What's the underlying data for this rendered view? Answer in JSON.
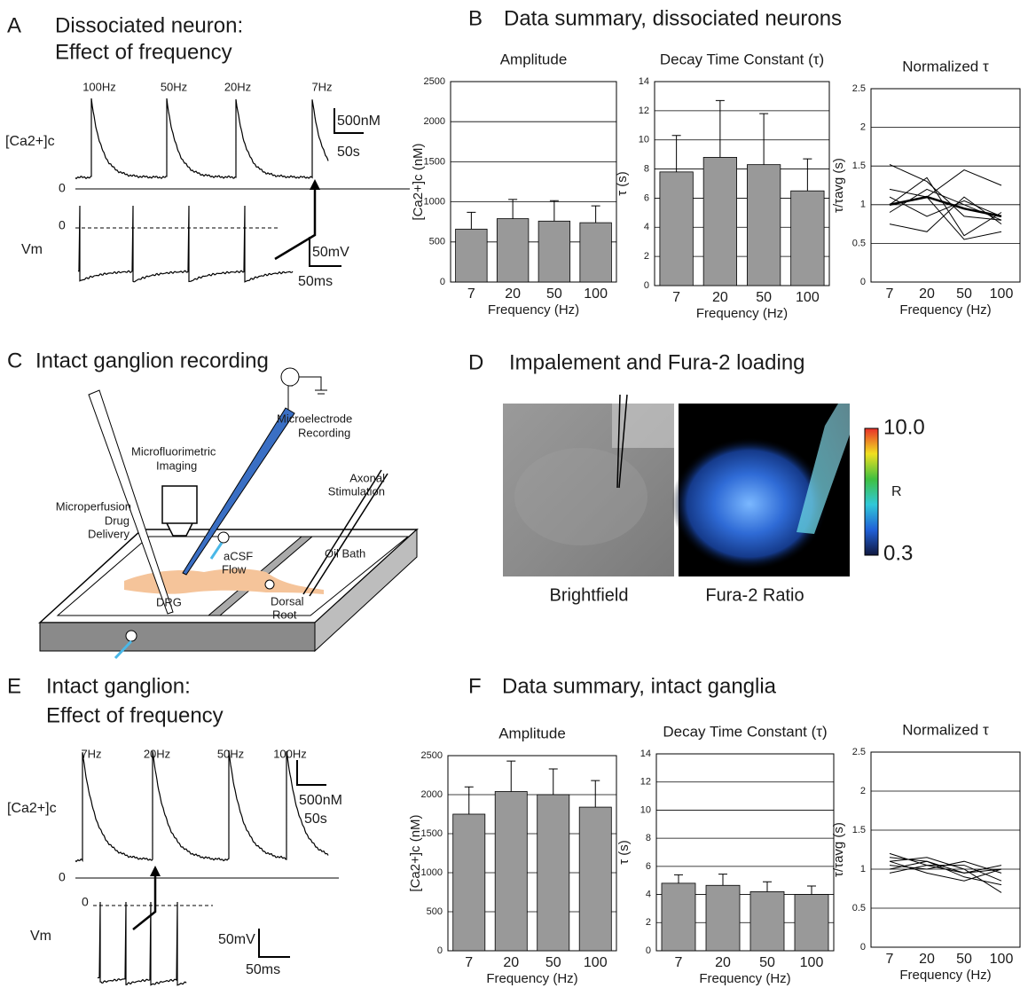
{
  "panels": {
    "a": {
      "label": "A",
      "title": [
        "Dissociated neuron:",
        "Effect of frequency"
      ],
      "frequencies": [
        "100Hz",
        "50Hz",
        "20Hz",
        "7Hz"
      ],
      "ca_label": "[Ca2+]c",
      "ca_scale": [
        "500nM",
        "50s"
      ],
      "zero_ca": "0",
      "zero_vm": "0",
      "vm_label": "Vm",
      "vm_scale": [
        "50mV",
        "50ms"
      ]
    },
    "b": {
      "label": "B",
      "title": "Data summary, dissociated neurons"
    },
    "c": {
      "label": "C",
      "title": "Intact ganglion recording",
      "microelectrode": [
        "Microelectrode",
        "Recording"
      ],
      "imaging": [
        "Microfluorimetric",
        "Imaging"
      ],
      "perfusion": [
        "Microperfusion",
        "Drug",
        "Delivery"
      ],
      "stimulation": [
        "Axonal",
        "Stimulation"
      ],
      "flow": [
        "aCSF",
        "Flow"
      ],
      "oil": "Oil Bath",
      "drg": "DRG",
      "root": [
        "Dorsal",
        "Root"
      ]
    },
    "d": {
      "label": "D",
      "title": "Impalement and Fura-2 loading",
      "scale_max": "10.0",
      "scale_name": "R",
      "scale_min": "0.3",
      "images": [
        "Brightfield",
        "Fura-2 Ratio"
      ]
    },
    "e": {
      "label": "E",
      "title": [
        "Intact ganglion:",
        "Effect of frequency"
      ],
      "frequencies": [
        "7Hz",
        "20Hz",
        "50Hz",
        "100Hz"
      ],
      "ca_label": "[Ca2+]c",
      "ca_scale": [
        "500nM",
        "50s"
      ],
      "zero_ca": "0",
      "zero_vm": "0",
      "vm_label": "Vm",
      "vm_scale": [
        "50mV",
        "50ms"
      ]
    },
    "f": {
      "label": "F",
      "title": "Data summary, intact ganglia"
    }
  },
  "chart_data": [
    {
      "type": "bar",
      "title": "Amplitude",
      "categories": [
        "7",
        "20",
        "50",
        "100"
      ],
      "values": [
        660,
        790,
        760,
        740
      ],
      "errors": [
        210,
        240,
        255,
        210
      ],
      "color": "#999999",
      "xlabel": "Frequency (Hz)",
      "ylabel": "[Ca2+]c (nM)",
      "ylim": [
        0,
        2500
      ],
      "yticks": [
        0,
        500,
        1000,
        1500,
        2000,
        2500
      ],
      "grid": true
    },
    {
      "type": "bar",
      "title": "Decay Time Constant (τ)",
      "categories": [
        "7",
        "20",
        "50",
        "100"
      ],
      "values": [
        7.8,
        8.8,
        8.3,
        6.5
      ],
      "errors": [
        2.5,
        3.9,
        3.5,
        2.2
      ],
      "color": "#999999",
      "xlabel": "Frequency (Hz)",
      "ylabel": "τ (s)",
      "ylim": [
        0,
        14
      ],
      "yticks": [
        0,
        2,
        4,
        6,
        8,
        10,
        12,
        14
      ],
      "grid": true
    },
    {
      "type": "line",
      "title": "Normalized τ",
      "categories": [
        "7",
        "20",
        "50",
        "100"
      ],
      "series": [
        {
          "color": "#000000",
          "values": [
            1.52,
            1.3,
            0.85,
            0.8
          ]
        },
        {
          "color": "#000000",
          "values": [
            1.2,
            1.1,
            0.55,
            0.65
          ]
        },
        {
          "color": "#000000",
          "values": [
            1.0,
            1.1,
            1.45,
            1.25
          ]
        },
        {
          "color": "#000000",
          "values": [
            0.75,
            0.65,
            1.1,
            0.75
          ]
        },
        {
          "color": "#000000",
          "values": [
            1.0,
            1.35,
            0.6,
            0.9
          ]
        },
        {
          "color": "#000000",
          "values": [
            1.1,
            0.85,
            1.05,
            0.85
          ]
        },
        {
          "color": "#000000",
          "values": [
            0.9,
            1.2,
            1.0,
            0.8
          ]
        },
        {
          "color": "#000000",
          "width": 2.5,
          "values": [
            1.0,
            1.1,
            0.95,
            0.85
          ]
        }
      ],
      "xlabel": "Frequency (Hz)",
      "ylabel": "τ/τavg (s)",
      "ylim": [
        0,
        2.5
      ],
      "yticks": [
        0,
        0.5,
        1,
        1.5,
        2,
        2.5
      ],
      "grid": true
    },
    {
      "type": "bar",
      "title": "Amplitude",
      "categories": [
        "7",
        "20",
        "50",
        "100"
      ],
      "values": [
        1750,
        2040,
        2000,
        1840
      ],
      "errors": [
        350,
        390,
        330,
        340
      ],
      "color": "#999999",
      "xlabel": "Frequency (Hz)",
      "ylabel": "[Ca2+]c (nM)",
      "ylim": [
        0,
        2500
      ],
      "yticks": [
        0,
        500,
        1000,
        1500,
        2000,
        2500
      ],
      "grid": true
    },
    {
      "type": "bar",
      "title": "Decay Time Constant (τ)",
      "categories": [
        "7",
        "20",
        "50",
        "100"
      ],
      "values": [
        4.8,
        4.65,
        4.2,
        4.0
      ],
      "errors": [
        0.6,
        0.8,
        0.7,
        0.6
      ],
      "color": "#999999",
      "xlabel": "Frequency (Hz)",
      "ylabel": "τ (s)",
      "ylim": [
        0,
        14
      ],
      "yticks": [
        0,
        2,
        4,
        6,
        8,
        10,
        12,
        14
      ],
      "grid": true
    },
    {
      "type": "line",
      "title": "Normalized τ",
      "categories": [
        "7",
        "20",
        "50",
        "100"
      ],
      "series": [
        {
          "color": "#000000",
          "values": [
            1.2,
            1.05,
            0.95,
            1.05
          ]
        },
        {
          "color": "#000000",
          "values": [
            1.15,
            1.1,
            0.9,
            0.8
          ]
        },
        {
          "color": "#000000",
          "values": [
            1.1,
            1.15,
            1.0,
            0.7
          ]
        },
        {
          "color": "#000000",
          "values": [
            1.05,
            1.0,
            1.1,
            0.95
          ]
        },
        {
          "color": "#000000",
          "values": [
            1.0,
            1.1,
            0.95,
            1.0
          ]
        },
        {
          "color": "#000000",
          "values": [
            0.95,
            1.05,
            1.05,
            0.85
          ]
        },
        {
          "color": "#000000",
          "values": [
            1.1,
            0.95,
            0.85,
            1.0
          ]
        }
      ],
      "xlabel": "Frequency (Hz)",
      "ylabel": "τ/τavg (s)",
      "ylim": [
        0,
        2.5
      ],
      "yticks": [
        0,
        0.5,
        1,
        1.5,
        2,
        2.5
      ],
      "grid": true
    }
  ]
}
